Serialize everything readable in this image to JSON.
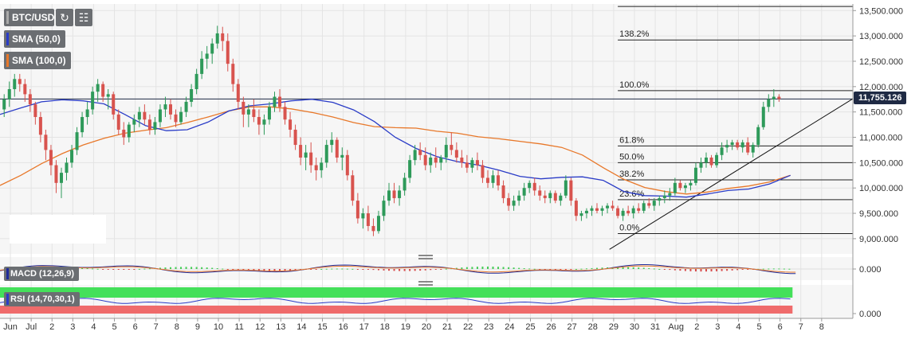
{
  "header": {
    "symbol": "BTC/USD",
    "refresh_icon": "refresh-icon",
    "calendar_icon": "calendar-icon"
  },
  "indicators": {
    "sma50": {
      "label": "SMA (50,0)",
      "color": "#2a3cc7"
    },
    "sma100": {
      "label": "SMA (100,0)",
      "color": "#e8782a"
    },
    "macd": {
      "label": "MACD (12,26,9)",
      "color": "#1f2a9a",
      "zero_label": "0.000"
    },
    "rsi": {
      "label": "RSI (14,70,30,1)",
      "color": "#2a3cc7",
      "zero_label": "0.000"
    }
  },
  "colors": {
    "up": "#2e9a5a",
    "down": "#d8534e",
    "grid": "#e4e4e4",
    "pane_bg": "#f6f6f6",
    "rsi_over": "#44e05a",
    "rsi_under": "#ef6b6b",
    "price_tag": "#1f2a44"
  },
  "current_price": "11,755.126",
  "chart_data": {
    "type": "candlestick",
    "y_axis": {
      "ticks": [
        "13,500.000",
        "13,000.000",
        "12,500.000",
        "12,000.000",
        "11,500.000",
        "11,000.000",
        "10,500.000",
        "10,000.000",
        "9,500.000",
        "9,000.000"
      ],
      "tick_values": [
        13500,
        13000,
        12500,
        12000,
        11500,
        11000,
        10500,
        10000,
        9500,
        9000
      ],
      "range": [
        8700,
        13630
      ]
    },
    "x_axis": {
      "labels": [
        "Jun",
        "Jul",
        "2",
        "3",
        "4",
        "5",
        "6",
        "7",
        "8",
        "9",
        "10",
        "11",
        "12",
        "13",
        "14",
        "15",
        "16",
        "17",
        "18",
        "19",
        "20",
        "21",
        "22",
        "23",
        "24",
        "25",
        "26",
        "27",
        "28",
        "29",
        "30",
        "31",
        "Aug",
        "2",
        "3",
        "4",
        "5",
        "6",
        "7",
        "8"
      ],
      "range": [
        -0.5,
        40.5
      ]
    },
    "fibonacci": {
      "levels": [
        {
          "label": "138.2%",
          "value": 12920
        },
        {
          "label": "100.0%",
          "value": 11920
        },
        {
          "label": "61.8%",
          "value": 10830
        },
        {
          "label": "50.0%",
          "value": 10500
        },
        {
          "label": "38.2%",
          "value": 10160
        },
        {
          "label": "23.6%",
          "value": 9770
        },
        {
          "label": "0.0%",
          "value": 9100
        }
      ],
      "top_extra": 13580,
      "x_start": 29.2,
      "x_end": 40.5
    },
    "horizontal_line": 11755.126,
    "trendline": {
      "x1": 28.8,
      "y1": 8790,
      "x2": 40.5,
      "y2": 11760
    },
    "sma50": [
      [
        -0.5,
        11450
      ],
      [
        0.5,
        11580
      ],
      [
        1.5,
        11700
      ],
      [
        2.5,
        11740
      ],
      [
        3.5,
        11720
      ],
      [
        4.5,
        11660
      ],
      [
        5.5,
        11450
      ],
      [
        6.5,
        11230
      ],
      [
        7.5,
        11130
      ],
      [
        8.5,
        11150
      ],
      [
        9.5,
        11300
      ],
      [
        10.5,
        11520
      ],
      [
        11.5,
        11620
      ],
      [
        12.5,
        11660
      ],
      [
        13.5,
        11720
      ],
      [
        14.5,
        11750
      ],
      [
        15.5,
        11690
      ],
      [
        16.5,
        11540
      ],
      [
        17.5,
        11310
      ],
      [
        18.5,
        11000
      ],
      [
        19.5,
        10780
      ],
      [
        20.5,
        10620
      ],
      [
        21.5,
        10520
      ],
      [
        22.5,
        10450
      ],
      [
        23.5,
        10350
      ],
      [
        24.5,
        10230
      ],
      [
        25.5,
        10180
      ],
      [
        26.5,
        10210
      ],
      [
        27.5,
        10220
      ],
      [
        28.5,
        10150
      ],
      [
        29.5,
        9930
      ],
      [
        30.5,
        9850
      ],
      [
        31.5,
        9840
      ],
      [
        32.5,
        9820
      ],
      [
        33.5,
        9880
      ],
      [
        34.5,
        9950
      ],
      [
        35.5,
        9980
      ],
      [
        36.5,
        10080
      ],
      [
        37.5,
        10250
      ]
    ],
    "sma100": [
      [
        -0.5,
        10050
      ],
      [
        0.5,
        10250
      ],
      [
        1.5,
        10480
      ],
      [
        2.5,
        10680
      ],
      [
        3.5,
        10850
      ],
      [
        4.5,
        10980
      ],
      [
        5.5,
        11080
      ],
      [
        6.5,
        11140
      ],
      [
        7.5,
        11190
      ],
      [
        8.5,
        11290
      ],
      [
        9.5,
        11400
      ],
      [
        10.5,
        11520
      ],
      [
        11.5,
        11600
      ],
      [
        12.5,
        11600
      ],
      [
        13.5,
        11560
      ],
      [
        14.5,
        11490
      ],
      [
        15.5,
        11400
      ],
      [
        16.5,
        11290
      ],
      [
        17.5,
        11210
      ],
      [
        18.5,
        11190
      ],
      [
        19.5,
        11180
      ],
      [
        20.5,
        11120
      ],
      [
        21.5,
        11080
      ],
      [
        22.5,
        11010
      ],
      [
        23.5,
        10970
      ],
      [
        24.5,
        10920
      ],
      [
        25.5,
        10870
      ],
      [
        26.5,
        10800
      ],
      [
        27.5,
        10650
      ],
      [
        28.5,
        10400
      ],
      [
        29.5,
        10170
      ],
      [
        30.5,
        10010
      ],
      [
        31.5,
        9930
      ],
      [
        32.5,
        9880
      ],
      [
        33.5,
        9920
      ],
      [
        34.5,
        9990
      ],
      [
        35.5,
        10040
      ],
      [
        36.5,
        10120
      ],
      [
        37.5,
        10250
      ]
    ],
    "candles": [
      [
        -0.3,
        11550,
        11850,
        11400,
        11750
      ],
      [
        -0.05,
        11750,
        12100,
        11600,
        11950
      ],
      [
        0.2,
        11950,
        12250,
        11800,
        12150
      ],
      [
        0.45,
        12150,
        12250,
        11900,
        12050
      ],
      [
        0.7,
        12050,
        12150,
        11700,
        11850
      ],
      [
        0.95,
        11850,
        11950,
        11500,
        11650
      ],
      [
        1.2,
        11650,
        11700,
        11250,
        11400
      ],
      [
        1.45,
        11400,
        11500,
        10900,
        11050
      ],
      [
        1.7,
        11050,
        11150,
        10550,
        10750
      ],
      [
        1.95,
        10750,
        10850,
        10250,
        10450
      ],
      [
        2.2,
        10450,
        10550,
        9900,
        10100
      ],
      [
        2.45,
        10100,
        10400,
        9800,
        10300
      ],
      [
        2.7,
        10300,
        10600,
        10150,
        10500
      ],
      [
        2.95,
        10500,
        10850,
        10400,
        10750
      ],
      [
        3.2,
        10750,
        11200,
        10650,
        11100
      ],
      [
        3.45,
        11100,
        11500,
        11000,
        11400
      ],
      [
        3.7,
        11400,
        11700,
        11250,
        11550
      ],
      [
        3.95,
        11550,
        12000,
        11450,
        11900
      ],
      [
        4.2,
        11900,
        12150,
        11700,
        12050
      ],
      [
        4.45,
        12050,
        12100,
        11700,
        11800
      ],
      [
        4.7,
        11800,
        11950,
        11550,
        11850
      ],
      [
        4.95,
        11850,
        11900,
        11350,
        11450
      ],
      [
        5.2,
        11450,
        11550,
        11050,
        11150
      ],
      [
        5.45,
        11150,
        11300,
        10850,
        11000
      ],
      [
        5.7,
        11000,
        11300,
        10900,
        11250
      ],
      [
        5.95,
        11250,
        11450,
        11100,
        11350
      ],
      [
        6.2,
        11350,
        11600,
        11200,
        11500
      ],
      [
        6.45,
        11500,
        11650,
        11250,
        11350
      ],
      [
        6.7,
        11350,
        11450,
        11050,
        11150
      ],
      [
        6.95,
        11150,
        11400,
        11050,
        11300
      ],
      [
        7.2,
        11300,
        11650,
        11200,
        11550
      ],
      [
        7.45,
        11550,
        11800,
        11400,
        11650
      ],
      [
        7.7,
        11650,
        11750,
        11350,
        11450
      ],
      [
        7.95,
        11450,
        11550,
        11200,
        11300
      ],
      [
        8.2,
        11300,
        11600,
        11250,
        11500
      ],
      [
        8.45,
        11500,
        11800,
        11400,
        11700
      ],
      [
        8.7,
        11700,
        12050,
        11600,
        11950
      ],
      [
        8.95,
        11950,
        12350,
        11850,
        12250
      ],
      [
        9.2,
        12250,
        12700,
        12150,
        12550
      ],
      [
        9.45,
        12550,
        12800,
        12350,
        12650
      ],
      [
        9.7,
        12650,
        12950,
        12450,
        12850
      ],
      [
        9.95,
        12850,
        13200,
        12750,
        13050
      ],
      [
        10.2,
        13050,
        13180,
        12700,
        12900
      ],
      [
        10.45,
        12900,
        13050,
        12300,
        12450
      ],
      [
        10.7,
        12450,
        12550,
        11900,
        12050
      ],
      [
        10.95,
        12050,
        12150,
        11550,
        11700
      ],
      [
        11.2,
        11700,
        11800,
        11200,
        11450
      ],
      [
        11.45,
        11450,
        11650,
        11200,
        11550
      ],
      [
        11.7,
        11550,
        11750,
        11300,
        11400
      ],
      [
        11.95,
        11400,
        11550,
        11050,
        11250
      ],
      [
        12.2,
        11250,
        11450,
        11050,
        11350
      ],
      [
        12.45,
        11350,
        11700,
        11250,
        11600
      ],
      [
        12.7,
        11600,
        11900,
        11500,
        11800
      ],
      [
        12.95,
        11800,
        11950,
        11500,
        11600
      ],
      [
        13.2,
        11600,
        11700,
        11250,
        11350
      ],
      [
        13.45,
        11350,
        11500,
        11000,
        11150
      ],
      [
        13.7,
        11150,
        11250,
        10750,
        10850
      ],
      [
        13.95,
        10850,
        11000,
        10450,
        10600
      ],
      [
        14.2,
        10600,
        10850,
        10350,
        10700
      ],
      [
        14.45,
        10700,
        10900,
        10300,
        10450
      ],
      [
        14.7,
        10450,
        10600,
        10150,
        10350
      ],
      [
        14.95,
        10350,
        10600,
        10200,
        10500
      ],
      [
        15.2,
        10500,
        10950,
        10400,
        10850
      ],
      [
        15.45,
        10850,
        11100,
        10700,
        10950
      ],
      [
        15.7,
        10950,
        11000,
        10500,
        10600
      ],
      [
        15.95,
        10600,
        10800,
        10350,
        10650
      ],
      [
        16.2,
        10650,
        10750,
        10150,
        10250
      ],
      [
        16.45,
        10250,
        10350,
        9650,
        9750
      ],
      [
        16.7,
        9750,
        9900,
        9300,
        9400
      ],
      [
        16.95,
        9400,
        9600,
        9200,
        9500
      ],
      [
        17.2,
        9500,
        9650,
        9150,
        9250
      ],
      [
        17.45,
        9250,
        9400,
        9050,
        9150
      ],
      [
        17.7,
        9150,
        9550,
        9100,
        9450
      ],
      [
        17.95,
        9450,
        9850,
        9350,
        9750
      ],
      [
        18.2,
        9750,
        10100,
        9650,
        9950
      ],
      [
        18.45,
        9950,
        10100,
        9700,
        9800
      ],
      [
        18.7,
        9800,
        10050,
        9650,
        9950
      ],
      [
        18.95,
        9950,
        10300,
        9850,
        10200
      ],
      [
        19.2,
        10200,
        10650,
        10100,
        10550
      ],
      [
        19.45,
        10550,
        10850,
        10450,
        10750
      ],
      [
        19.7,
        10750,
        10900,
        10550,
        10650
      ],
      [
        19.95,
        10650,
        10800,
        10350,
        10450
      ],
      [
        20.2,
        10450,
        10700,
        10300,
        10600
      ],
      [
        20.45,
        10600,
        10800,
        10400,
        10500
      ],
      [
        20.7,
        10500,
        10650,
        10350,
        10600
      ],
      [
        20.95,
        10600,
        11000,
        10500,
        10850
      ],
      [
        21.2,
        10850,
        11100,
        10650,
        10750
      ],
      [
        21.45,
        10750,
        10900,
        10500,
        10600
      ],
      [
        21.7,
        10600,
        10750,
        10400,
        10500
      ],
      [
        21.95,
        10500,
        10650,
        10300,
        10400
      ],
      [
        22.2,
        10400,
        10600,
        10300,
        10550
      ],
      [
        22.45,
        10550,
        10700,
        10350,
        10450
      ],
      [
        22.7,
        10450,
        10550,
        10100,
        10200
      ],
      [
        22.95,
        10200,
        10350,
        10000,
        10100
      ],
      [
        23.2,
        10100,
        10350,
        10000,
        10250
      ],
      [
        23.45,
        10250,
        10350,
        9950,
        10050
      ],
      [
        23.7,
        10050,
        10150,
        9700,
        9800
      ],
      [
        23.95,
        9800,
        9900,
        9550,
        9650
      ],
      [
        24.2,
        9650,
        9850,
        9550,
        9750
      ],
      [
        24.45,
        9750,
        9950,
        9650,
        9850
      ],
      [
        24.7,
        9850,
        10100,
        9750,
        10000
      ],
      [
        24.95,
        10000,
        10150,
        9900,
        10100
      ],
      [
        25.2,
        10100,
        10200,
        9850,
        9950
      ],
      [
        25.45,
        9950,
        10050,
        9750,
        9850
      ],
      [
        25.7,
        9850,
        9950,
        9700,
        9800
      ],
      [
        25.95,
        9800,
        9950,
        9700,
        9900
      ],
      [
        26.2,
        9900,
        9950,
        9700,
        9750
      ],
      [
        26.45,
        9750,
        9900,
        9650,
        9850
      ],
      [
        26.7,
        9850,
        10250,
        9800,
        10150
      ],
      [
        26.95,
        10150,
        10200,
        9650,
        9750
      ],
      [
        27.2,
        9750,
        9800,
        9350,
        9450
      ],
      [
        27.45,
        9450,
        9550,
        9350,
        9500
      ],
      [
        27.7,
        9500,
        9600,
        9400,
        9550
      ],
      [
        27.95,
        9550,
        9650,
        9450,
        9600
      ],
      [
        28.2,
        9600,
        9700,
        9500,
        9550
      ],
      [
        28.45,
        9550,
        9650,
        9450,
        9600
      ],
      [
        28.7,
        9600,
        9700,
        9500,
        9650
      ],
      [
        28.95,
        9650,
        9750,
        9550,
        9600
      ],
      [
        29.2,
        9600,
        9650,
        9400,
        9450
      ],
      [
        29.45,
        9450,
        9600,
        9350,
        9550
      ],
      [
        29.7,
        9550,
        9650,
        9450,
        9500
      ],
      [
        29.95,
        9500,
        9650,
        9400,
        9600
      ],
      [
        30.2,
        9600,
        9700,
        9500,
        9550
      ],
      [
        30.45,
        9550,
        9750,
        9500,
        9700
      ],
      [
        30.7,
        9700,
        9800,
        9600,
        9650
      ],
      [
        30.95,
        9650,
        9800,
        9550,
        9750
      ],
      [
        31.2,
        9750,
        9850,
        9650,
        9800
      ],
      [
        31.45,
        9800,
        9950,
        9700,
        9850
      ],
      [
        31.7,
        9850,
        10000,
        9750,
        9900
      ],
      [
        31.95,
        9900,
        10200,
        9850,
        10100
      ],
      [
        32.2,
        10100,
        10150,
        9950,
        10000
      ],
      [
        32.45,
        10000,
        10100,
        9900,
        10050
      ],
      [
        32.7,
        10050,
        10150,
        9950,
        10100
      ],
      [
        32.95,
        10100,
        10500,
        10050,
        10400
      ],
      [
        33.2,
        10400,
        10600,
        10300,
        10500
      ],
      [
        33.45,
        10500,
        10700,
        10400,
        10600
      ],
      [
        33.7,
        10600,
        10650,
        10400,
        10450
      ],
      [
        33.95,
        10450,
        10700,
        10400,
        10650
      ],
      [
        34.2,
        10650,
        10900,
        10550,
        10800
      ],
      [
        34.45,
        10800,
        10950,
        10700,
        10850
      ],
      [
        34.7,
        10850,
        10950,
        10750,
        10900
      ],
      [
        34.95,
        10900,
        10950,
        10750,
        10800
      ],
      [
        35.2,
        10800,
        10950,
        10700,
        10900
      ],
      [
        35.45,
        10900,
        11000,
        10650,
        10700
      ],
      [
        35.7,
        10700,
        10900,
        10600,
        10850
      ],
      [
        35.95,
        10850,
        11250,
        10800,
        11200
      ],
      [
        36.2,
        11200,
        11700,
        11150,
        11600
      ],
      [
        36.45,
        11600,
        11850,
        11500,
        11750
      ],
      [
        36.7,
        11750,
        11950,
        11600,
        11800
      ],
      [
        36.95,
        11800,
        11850,
        11700,
        11755
      ]
    ]
  }
}
